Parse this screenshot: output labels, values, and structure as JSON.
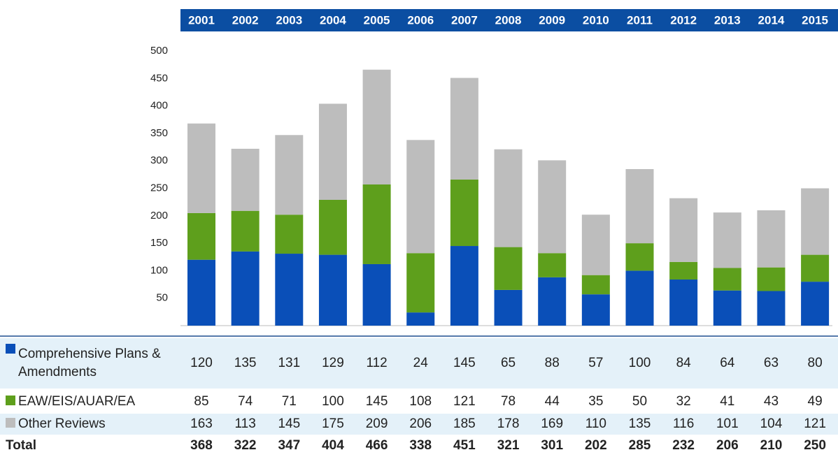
{
  "chart_data": {
    "type": "stacked_bar",
    "categories": [
      "2001",
      "2002",
      "2003",
      "2004",
      "2005",
      "2006",
      "2007",
      "2008",
      "2009",
      "2010",
      "2011",
      "2012",
      "2013",
      "2014",
      "2015"
    ],
    "series": [
      {
        "name": "Comprehensive Plans & Amendments",
        "color": "#0a4fb8",
        "values": [
          120,
          135,
          131,
          129,
          112,
          24,
          145,
          65,
          88,
          57,
          100,
          84,
          64,
          63,
          80
        ]
      },
      {
        "name": "EAW/EIS/AUAR/EA",
        "color": "#5e9f1c",
        "values": [
          85,
          74,
          71,
          100,
          145,
          108,
          121,
          78,
          44,
          35,
          50,
          32,
          41,
          43,
          49
        ]
      },
      {
        "name": "Other Reviews",
        "color": "#bdbdbd",
        "values": [
          163,
          113,
          145,
          175,
          209,
          206,
          185,
          178,
          169,
          110,
          135,
          116,
          101,
          104,
          121
        ]
      }
    ],
    "total_label": "Total",
    "totals": [
      368,
      322,
      347,
      404,
      466,
      338,
      451,
      321,
      301,
      202,
      285,
      232,
      206,
      210,
      250
    ],
    "ylim": [
      0,
      500
    ],
    "yticks": [
      50,
      100,
      150,
      200,
      250,
      300,
      350,
      400,
      450,
      500
    ],
    "grid": false
  }
}
